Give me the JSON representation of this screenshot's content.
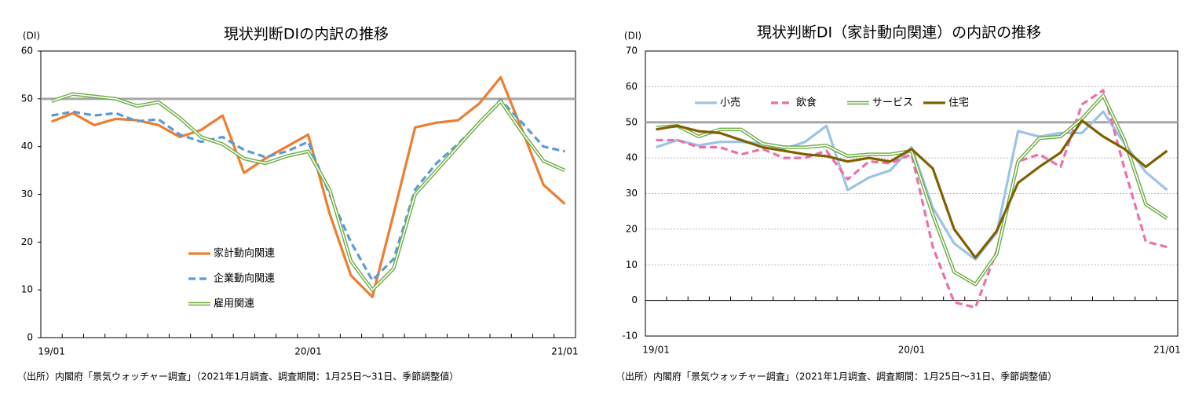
{
  "chart_data": [
    {
      "type": "line",
      "title": "現状判断DIの内訳の推移",
      "y_unit": "(DI)",
      "source": "（出所）内閣府「景気ウォッチャー調査」（2021年1月調査、調査期間：1月25日～31日、季節調整値）",
      "categories": [
        "19/01",
        null,
        null,
        null,
        null,
        null,
        null,
        null,
        null,
        null,
        null,
        null,
        "20/01",
        null,
        null,
        null,
        null,
        null,
        null,
        null,
        null,
        null,
        null,
        null,
        "21/01"
      ],
      "ylim": [
        0,
        60
      ],
      "yticks": [
        0,
        10,
        20,
        30,
        40,
        50,
        60
      ],
      "grid": false,
      "reference_line": 50,
      "legend": "center",
      "series": [
        {
          "name": "家計動向関連",
          "color": "#ed7d31",
          "style": "solid",
          "values": [
            45.2,
            47,
            44.5,
            45.8,
            45.5,
            44.5,
            42,
            43.5,
            46.5,
            34.5,
            37.5,
            40,
            42.5,
            26,
            13,
            8.5,
            26,
            44,
            45,
            45.5,
            49,
            54.5,
            43.5,
            32,
            28
          ]
        },
        {
          "name": "企業動向関連",
          "color": "#5b9bd5",
          "style": "dashed",
          "values": [
            46.5,
            47.3,
            46.5,
            47,
            45.3,
            45.7,
            42.5,
            41,
            42,
            39.3,
            37.8,
            39,
            41,
            30,
            20,
            12,
            16.5,
            31,
            36.5,
            40.5,
            45,
            49.8,
            45,
            40,
            39
          ]
        },
        {
          "name": "雇用関連",
          "color": "#70ad47",
          "style": "double",
          "values": [
            49.5,
            51,
            50.5,
            50,
            48.5,
            49.3,
            46,
            42,
            40.5,
            37.5,
            36.5,
            38,
            39,
            31,
            16,
            10,
            14.5,
            30,
            35,
            40,
            45,
            49.5,
            43,
            37,
            35
          ]
        }
      ]
    },
    {
      "type": "line",
      "title": "現状判断DI（家計動向関連）の内訳の推移",
      "y_unit": "(DI)",
      "source": "（出所）内閣府「景気ウォッチャー調査」（2021年1月調査、調査期間：1月25日～31日、季節調整値）",
      "categories": [
        "19/01",
        null,
        null,
        null,
        null,
        null,
        null,
        null,
        null,
        null,
        null,
        null,
        "20/01",
        null,
        null,
        null,
        null,
        null,
        null,
        null,
        null,
        null,
        null,
        null,
        "21/01"
      ],
      "ylim": [
        -10,
        70
      ],
      "yticks": [
        -10,
        0,
        10,
        20,
        30,
        40,
        50,
        60,
        70
      ],
      "grid": true,
      "reference_line": 50,
      "legend": "upper left",
      "series": [
        {
          "name": "小売",
          "color": "#9dc3e6",
          "style": "solid",
          "values": [
            43,
            45,
            43.5,
            44.5,
            44.5,
            44,
            42.5,
            44.5,
            49,
            31,
            34.5,
            36.5,
            43,
            26,
            16,
            11.5,
            19,
            47.5,
            46,
            47,
            47,
            53,
            44,
            36,
            31
          ]
        },
        {
          "name": "飲食",
          "color": "#ee6fa8",
          "style": "dashed",
          "values": [
            45,
            45,
            43,
            43,
            41,
            42.5,
            40,
            40,
            42,
            34,
            39,
            38.5,
            41,
            15,
            -0.5,
            -2,
            14,
            39,
            41,
            37.5,
            55,
            59,
            37,
            16.5,
            15
          ]
        },
        {
          "name": "サービス",
          "color": "#70ad47",
          "style": "double",
          "values": [
            48.5,
            49,
            46,
            48,
            48,
            44,
            43,
            43,
            43.5,
            40.5,
            41,
            41,
            42,
            24,
            8,
            4.5,
            13,
            39,
            45.5,
            46,
            51,
            57.5,
            45,
            27,
            23
          ]
        },
        {
          "name": "住宅",
          "color": "#7f6000",
          "style": "solid",
          "values": [
            48,
            49,
            47.5,
            47,
            45,
            43,
            42,
            41,
            40.5,
            39,
            40,
            39,
            42.5,
            37,
            20,
            12,
            19.5,
            33,
            37.5,
            41.5,
            50.5,
            46,
            42.5,
            37.5,
            42
          ]
        }
      ]
    }
  ]
}
